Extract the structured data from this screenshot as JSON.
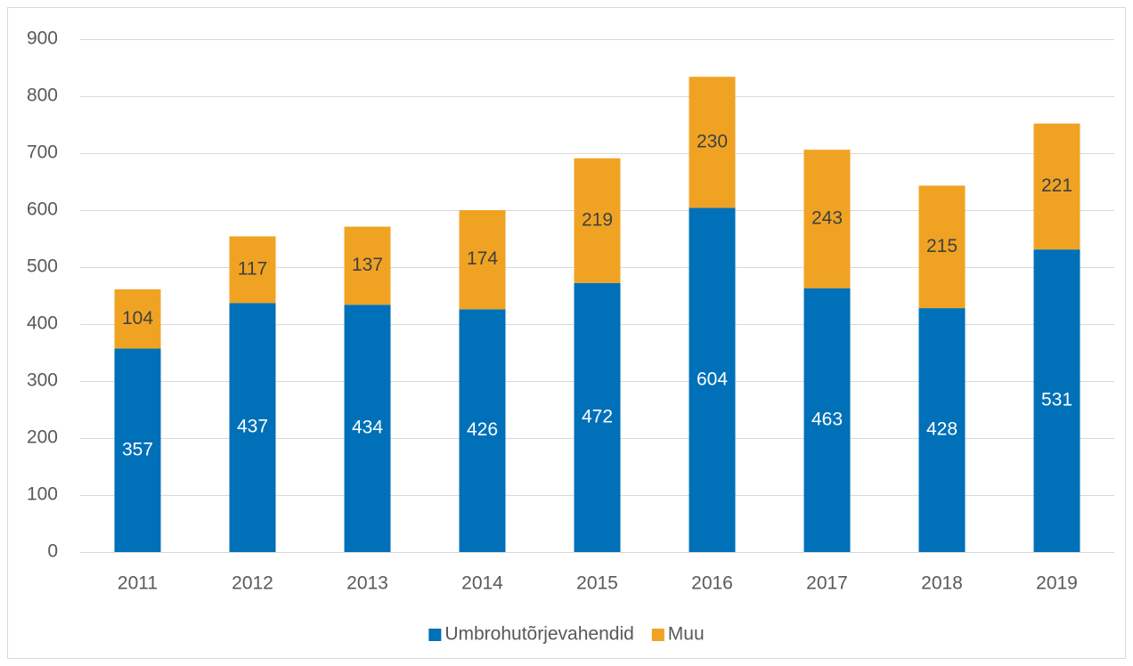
{
  "chart_data": {
    "type": "stacked_bar",
    "categories": [
      "2011",
      "2012",
      "2013",
      "2014",
      "2015",
      "2016",
      "2017",
      "2018",
      "2019"
    ],
    "series": [
      {
        "name": "Umbrohutõrjevahendid",
        "color": "#0070b8",
        "values": [
          357,
          437,
          434,
          426,
          472,
          604,
          463,
          428,
          531
        ]
      },
      {
        "name": "Muu",
        "color": "#f0a323",
        "values": [
          104,
          117,
          137,
          174,
          219,
          230,
          243,
          215,
          221
        ]
      }
    ],
    "ylim": [
      0,
      900
    ],
    "yticks": [
      0,
      100,
      200,
      300,
      400,
      500,
      600,
      700,
      800,
      900
    ],
    "grid": true,
    "legend": "bottom"
  }
}
